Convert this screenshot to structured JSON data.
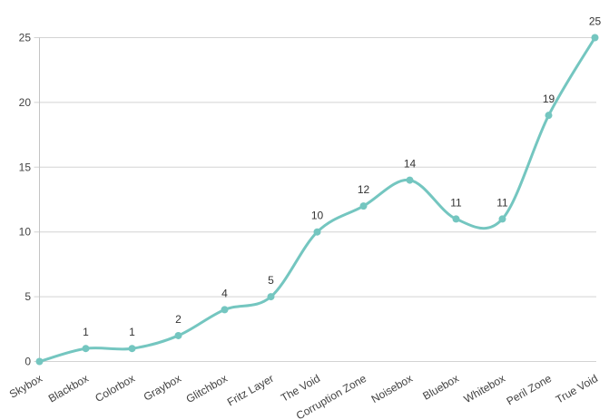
{
  "chart_data": {
    "type": "line",
    "title": "",
    "xlabel": "",
    "ylabel": "",
    "categories": [
      "Skybox",
      "Blackbox",
      "Colorbox",
      "Graybox",
      "Glitchbox",
      "Fritz Layer",
      "The Void",
      "Corruption Zone",
      "Noisebox",
      "Bluebox",
      "Whitebox",
      "Peril Zone",
      "True Void"
    ],
    "values": [
      0,
      1,
      1,
      2,
      4,
      5,
      10,
      12,
      14,
      11,
      11,
      19,
      25
    ],
    "data_labels": [
      "",
      "1",
      "1",
      "2",
      "4",
      "5",
      "10",
      "12",
      "14",
      "11",
      "11",
      "19",
      "25"
    ],
    "ylim": [
      0,
      25
    ],
    "yticks": [
      "0",
      "5",
      "10",
      "15",
      "20",
      "25"
    ],
    "grid": true,
    "legend": false,
    "smooth": true,
    "x_label_rotation_deg": -30,
    "colors": {
      "line": "#74c6c0",
      "marker": "#74c6c0",
      "grid": "#d3d3d3",
      "axis": "#c4c4c4",
      "tick_label": "#424242",
      "data_label": "#333333",
      "background": "#ffffff"
    }
  }
}
